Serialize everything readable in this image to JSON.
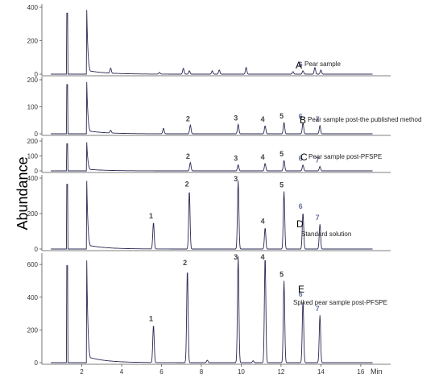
{
  "chart_data": {
    "type": "line",
    "ylabel": "Abundance",
    "xunit": "Min",
    "xlim": [
      0,
      17.5
    ],
    "x_ticks": [
      2,
      4,
      6,
      8,
      10,
      12,
      14,
      16
    ],
    "line_color": "#2a2a55",
    "panels": [
      {
        "id": "A",
        "letter": "A",
        "label": "Pear sample",
        "ylim": [
          0,
          400
        ],
        "y_ticks": [
          0,
          200,
          400
        ],
        "solvent_front": [
          1.25,
          2.25
        ],
        "baseline_peaks": [
          {
            "x": 3.45,
            "y": 30
          },
          {
            "x": 5.9,
            "y": 10
          },
          {
            "x": 7.1,
            "y": 35
          },
          {
            "x": 7.4,
            "y": 20
          },
          {
            "x": 8.55,
            "y": 20
          },
          {
            "x": 8.9,
            "y": 25
          },
          {
            "x": 10.25,
            "y": 40
          },
          {
            "x": 12.6,
            "y": 15
          },
          {
            "x": 13.7,
            "y": 40
          },
          {
            "x": 14.0,
            "y": 25
          }
        ],
        "peaks": [
          {
            "label": "6",
            "x": 13.1,
            "y": 20
          }
        ]
      },
      {
        "id": "B",
        "letter": "B",
        "label": "Pear sample post-the published method",
        "ylim": [
          0,
          200
        ],
        "y_ticks": [
          0,
          100,
          200
        ],
        "solvent_front": [
          1.25,
          2.25
        ],
        "baseline_peaks": [
          {
            "x": 3.45,
            "y": 10
          },
          {
            "x": 6.1,
            "y": 20
          }
        ],
        "peaks": [
          {
            "label": "2",
            "x": 7.45,
            "y": 32
          },
          {
            "label": "3",
            "x": 9.85,
            "y": 35
          },
          {
            "label": "4",
            "x": 11.2,
            "y": 30
          },
          {
            "label": "5",
            "x": 12.15,
            "y": 42
          },
          {
            "label": "6",
            "x": 13.1,
            "y": 40
          },
          {
            "label": "7",
            "x": 13.95,
            "y": 30
          }
        ]
      },
      {
        "id": "C",
        "letter": "C",
        "label": "Pear sample post-PFSPE",
        "ylim": [
          0,
          200
        ],
        "y_ticks": [
          0,
          100,
          200
        ],
        "solvent_front": [
          1.25,
          2.25
        ],
        "baseline_peaks": [],
        "peaks": [
          {
            "label": "2",
            "x": 7.45,
            "y": 55
          },
          {
            "label": "3",
            "x": 9.85,
            "y": 40
          },
          {
            "label": "4",
            "x": 11.2,
            "y": 50
          },
          {
            "label": "5",
            "x": 12.15,
            "y": 70
          },
          {
            "label": "6",
            "x": 13.1,
            "y": 40
          },
          {
            "label": "7",
            "x": 13.95,
            "y": 30
          }
        ]
      },
      {
        "id": "D",
        "letter": "D",
        "label": "Standard solution",
        "ylim": [
          0,
          400
        ],
        "y_ticks": [
          0,
          200,
          400
        ],
        "solvent_front": [
          1.25,
          2.25
        ],
        "baseline_peaks": [],
        "peaks": [
          {
            "label": "1",
            "x": 5.6,
            "y": 150
          },
          {
            "label": "2",
            "x": 7.4,
            "y": 330
          },
          {
            "label": "3",
            "x": 9.85,
            "y": 385
          },
          {
            "label": "4",
            "x": 11.2,
            "y": 120
          },
          {
            "label": "5",
            "x": 12.15,
            "y": 325
          },
          {
            "label": "6",
            "x": 13.1,
            "y": 205
          },
          {
            "label": "7",
            "x": 13.95,
            "y": 140
          }
        ]
      },
      {
        "id": "E",
        "letter": "E",
        "label": "Spiked pear sample post-PFSPE",
        "ylim": [
          0,
          650
        ],
        "y_ticks": [
          0,
          200,
          400,
          600
        ],
        "solvent_front": [
          1.25,
          2.25
        ],
        "baseline_peaks": [
          {
            "x": 8.3,
            "y": 15
          },
          {
            "x": 10.6,
            "y": 12
          }
        ],
        "peaks": [
          {
            "label": "1",
            "x": 5.6,
            "y": 230
          },
          {
            "label": "2",
            "x": 7.3,
            "y": 570
          },
          {
            "label": "3",
            "x": 9.85,
            "y": 650
          },
          {
            "label": "4",
            "x": 11.2,
            "y": 650
          },
          {
            "label": "5",
            "x": 12.15,
            "y": 500
          },
          {
            "label": "6",
            "x": 13.1,
            "y": 380
          },
          {
            "label": "7",
            "x": 13.95,
            "y": 290
          }
        ]
      }
    ]
  }
}
